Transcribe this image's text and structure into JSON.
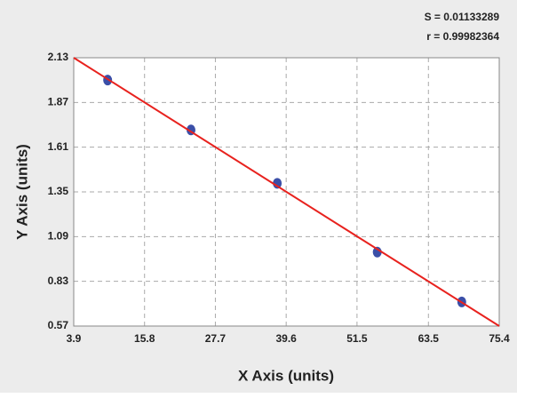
{
  "chart_data": {
    "type": "scatter",
    "x_label": "X Axis (units)",
    "y_label": "Y Axis (units)",
    "annotations": [
      "S = 0.01133289",
      "r = 0.99982364"
    ],
    "series": [
      {
        "color": "#3b4fa8",
        "x": [
          9.6,
          23.6,
          38.1,
          54.9,
          69.1
        ],
        "values": [
          2.0,
          1.71,
          1.4,
          1.0,
          0.71
        ]
      },
      {
        "color": "#e8221e",
        "line": true,
        "x": [
          3.9,
          75.4
        ],
        "values": [
          2.13,
          0.57
        ]
      }
    ],
    "xlim": [
      3.9,
      75.4
    ],
    "xticks": [
      3.9,
      15.8,
      27.7,
      39.6,
      51.5,
      63.5,
      75.4
    ],
    "ylim": [
      0.57,
      2.13
    ],
    "yticks": [
      0.57,
      0.83,
      1.09,
      1.35,
      1.61,
      1.87,
      2.13
    ],
    "grid": true
  }
}
